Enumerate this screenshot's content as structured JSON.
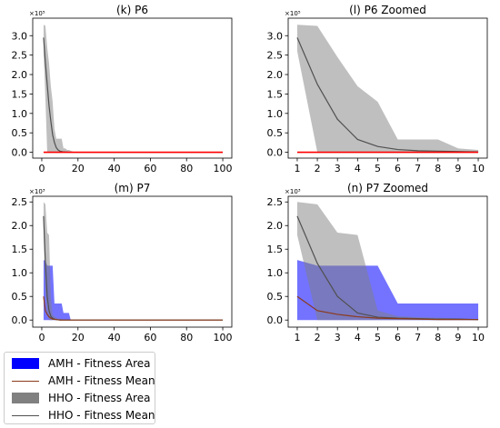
{
  "colors": {
    "amh_area": "#0000ff",
    "amh_mean": "#8b3a1a",
    "hho_area": "#808080",
    "hho_mean": "#505050",
    "zero_line": "#ff0000"
  },
  "legend": {
    "items": [
      {
        "label": "AMH - Fitness Area",
        "kind": "area",
        "color": "#0000ff"
      },
      {
        "label": "AMH - Fitness Mean",
        "kind": "line",
        "color": "#8b3a1a"
      },
      {
        "label": "HHO - Fitness Area",
        "kind": "area",
        "color": "#808080"
      },
      {
        "label": "HHO - Fitness Mean",
        "kind": "line",
        "color": "#505050"
      }
    ]
  },
  "chart_data": [
    {
      "id": "k",
      "type": "area",
      "title": "(k) P6",
      "offset_label": "×10⁵",
      "xlim": [
        -5,
        105
      ],
      "ylim": [
        -0.15,
        3.45
      ],
      "xticks": [
        0,
        20,
        40,
        60,
        80,
        100
      ],
      "xtick_labels": [
        "0",
        "20",
        "40",
        "60",
        "80",
        "100"
      ],
      "yticks": [
        0.0,
        0.5,
        1.0,
        1.5,
        2.0,
        2.5,
        3.0
      ],
      "ytick_labels": [
        "0.0",
        "0.5",
        "1.0",
        "1.5",
        "2.0",
        "2.5",
        "3.0"
      ],
      "series": [
        {
          "role": "hho_area",
          "x": [
            1,
            2,
            3,
            4,
            5,
            6,
            7,
            8,
            9,
            10,
            11,
            12,
            13,
            14,
            15,
            16,
            17,
            18,
            19,
            20,
            100
          ],
          "upper": [
            3.28,
            3.25,
            2.7,
            2.3,
            1.7,
            1.3,
            0.6,
            0.35,
            0.35,
            0.35,
            0.35,
            0.1,
            0.1,
            0.06,
            0.06,
            0.04,
            0.02,
            0,
            0,
            0,
            0
          ],
          "lower": [
            2.55,
            1.4,
            0,
            0,
            0,
            0,
            0,
            0,
            0,
            0,
            0,
            0,
            0,
            0,
            0,
            0,
            0,
            0,
            0,
            0,
            0
          ]
        },
        {
          "role": "hho_mean",
          "x": [
            1,
            2,
            3,
            4,
            5,
            6,
            7,
            8,
            9,
            10,
            12,
            15,
            20,
            100
          ],
          "y": [
            2.95,
            2.3,
            1.75,
            1.2,
            0.8,
            0.45,
            0.25,
            0.12,
            0.06,
            0.03,
            0.01,
            0,
            0,
            0
          ]
        },
        {
          "role": "amh_mean",
          "x": [
            1,
            100
          ],
          "y": [
            0,
            0
          ]
        }
      ]
    },
    {
      "id": "l",
      "type": "area",
      "title": "(l) P6 Zoomed",
      "offset_label": "×10⁵",
      "xlim": [
        0.55,
        10.45
      ],
      "ylim": [
        -0.15,
        3.45
      ],
      "xticks": [
        1,
        2,
        3,
        4,
        5,
        6,
        7,
        8,
        9,
        10
      ],
      "xtick_labels": [
        "1",
        "2",
        "3",
        "4",
        "5",
        "6",
        "7",
        "8",
        "9",
        "10"
      ],
      "yticks": [
        0.0,
        0.5,
        1.0,
        1.5,
        2.0,
        2.5,
        3.0
      ],
      "ytick_labels": [
        "0.0",
        "0.5",
        "1.0",
        "1.5",
        "2.0",
        "2.5",
        "3.0"
      ],
      "series": [
        {
          "role": "hho_area",
          "x": [
            1,
            2,
            3,
            4,
            5,
            6,
            7,
            8,
            9,
            10
          ],
          "upper": [
            3.28,
            3.25,
            2.45,
            1.7,
            1.3,
            0.33,
            0.33,
            0.33,
            0.1,
            0.06
          ],
          "lower": [
            2.6,
            0,
            0,
            0,
            0,
            0,
            0,
            0,
            0,
            0
          ]
        },
        {
          "role": "hho_mean",
          "x": [
            1,
            2,
            3,
            4,
            5,
            6,
            7,
            8,
            9,
            10
          ],
          "y": [
            2.95,
            1.75,
            0.85,
            0.33,
            0.15,
            0.07,
            0.04,
            0.03,
            0.02,
            0.01
          ]
        },
        {
          "role": "amh_mean",
          "x": [
            1,
            10
          ],
          "y": [
            0,
            0
          ]
        }
      ]
    },
    {
      "id": "m",
      "type": "area",
      "title": "(m) P7",
      "offset_label": "×10³",
      "xlim": [
        -5,
        105
      ],
      "ylim": [
        -0.15,
        2.62
      ],
      "xticks": [
        0,
        20,
        40,
        60,
        80,
        100
      ],
      "xtick_labels": [
        "0",
        "20",
        "40",
        "60",
        "80",
        "100"
      ],
      "yticks": [
        0.0,
        0.5,
        1.0,
        1.5,
        2.0,
        2.5
      ],
      "ytick_labels": [
        "0.0",
        "0.5",
        "1.0",
        "1.5",
        "2.0",
        "2.5"
      ],
      "series": [
        {
          "role": "amh_area",
          "x": [
            1,
            2,
            3,
            4,
            5,
            6,
            7,
            8,
            9,
            10,
            11,
            12,
            13,
            14,
            15,
            16,
            100
          ],
          "upper": [
            1.27,
            1.25,
            1.15,
            1.15,
            1.15,
            1.15,
            0.35,
            0.35,
            0.35,
            0.35,
            0.35,
            0.15,
            0.15,
            0.15,
            0.15,
            0,
            0
          ],
          "lower": [
            0,
            0,
            0,
            0,
            0,
            0,
            0,
            0,
            0,
            0,
            0,
            0,
            0,
            0,
            0,
            0,
            0
          ]
        },
        {
          "role": "hho_area",
          "x": [
            1,
            2,
            3,
            4,
            5,
            6,
            7,
            8,
            9,
            10,
            11,
            12,
            13,
            14,
            15,
            100
          ],
          "upper": [
            2.5,
            2.45,
            1.85,
            1.8,
            0.5,
            0.1,
            0.08,
            0.05,
            0.03,
            0.03,
            0.02,
            0.01,
            0,
            0,
            0,
            0
          ],
          "lower": [
            1.8,
            0.6,
            0.1,
            0,
            0,
            0,
            0,
            0,
            0,
            0,
            0,
            0,
            0,
            0,
            0,
            0
          ]
        },
        {
          "role": "hho_mean",
          "x": [
            1,
            2,
            3,
            4,
            5,
            6,
            7,
            8,
            10,
            15,
            100
          ],
          "y": [
            2.2,
            1.2,
            0.5,
            0.2,
            0.08,
            0.04,
            0.02,
            0.01,
            0,
            0,
            0
          ]
        },
        {
          "role": "amh_mean",
          "x": [
            1,
            2,
            3,
            4,
            5,
            6,
            8,
            10,
            15,
            100
          ],
          "y": [
            0.5,
            0.2,
            0.12,
            0.07,
            0.04,
            0.02,
            0.01,
            0,
            0,
            0
          ]
        }
      ]
    },
    {
      "id": "n",
      "type": "area",
      "title": "(n) P7 Zoomed",
      "offset_label": "×10³",
      "xlim": [
        0.55,
        10.45
      ],
      "ylim": [
        -0.15,
        2.62
      ],
      "xticks": [
        1,
        2,
        3,
        4,
        5,
        6,
        7,
        8,
        9,
        10
      ],
      "xtick_labels": [
        "1",
        "2",
        "3",
        "4",
        "5",
        "6",
        "7",
        "8",
        "9",
        "10"
      ],
      "yticks": [
        0.0,
        0.5,
        1.0,
        1.5,
        2.0,
        2.5
      ],
      "ytick_labels": [
        "0.0",
        "0.5",
        "1.0",
        "1.5",
        "2.0",
        "2.5"
      ],
      "series": [
        {
          "role": "amh_area",
          "x": [
            1,
            2,
            3,
            4,
            5,
            6,
            7,
            8,
            9,
            10
          ],
          "upper": [
            1.27,
            1.15,
            1.15,
            1.15,
            1.15,
            0.35,
            0.35,
            0.35,
            0.35,
            0.35
          ],
          "lower": [
            0,
            0,
            0,
            0,
            0,
            0,
            0,
            0,
            0,
            0
          ]
        },
        {
          "role": "hho_area",
          "x": [
            1,
            2,
            3,
            4,
            5,
            6,
            7,
            8,
            9,
            10
          ],
          "upper": [
            2.5,
            2.45,
            1.85,
            1.8,
            0.2,
            0.08,
            0.06,
            0.05,
            0.03,
            0.02
          ],
          "lower": [
            1.8,
            0,
            0,
            0,
            0,
            0,
            0,
            0,
            0,
            0
          ]
        },
        {
          "role": "hho_mean",
          "x": [
            1,
            2,
            3,
            4,
            5,
            6,
            7,
            8,
            9,
            10
          ],
          "y": [
            2.2,
            1.2,
            0.5,
            0.15,
            0.06,
            0.04,
            0.03,
            0.02,
            0.02,
            0.01
          ]
        },
        {
          "role": "amh_mean",
          "x": [
            1,
            2,
            3,
            4,
            5,
            6,
            7,
            8,
            9,
            10
          ],
          "y": [
            0.5,
            0.2,
            0.12,
            0.07,
            0.04,
            0.03,
            0.02,
            0.01,
            0.01,
            0.01
          ]
        }
      ]
    }
  ]
}
